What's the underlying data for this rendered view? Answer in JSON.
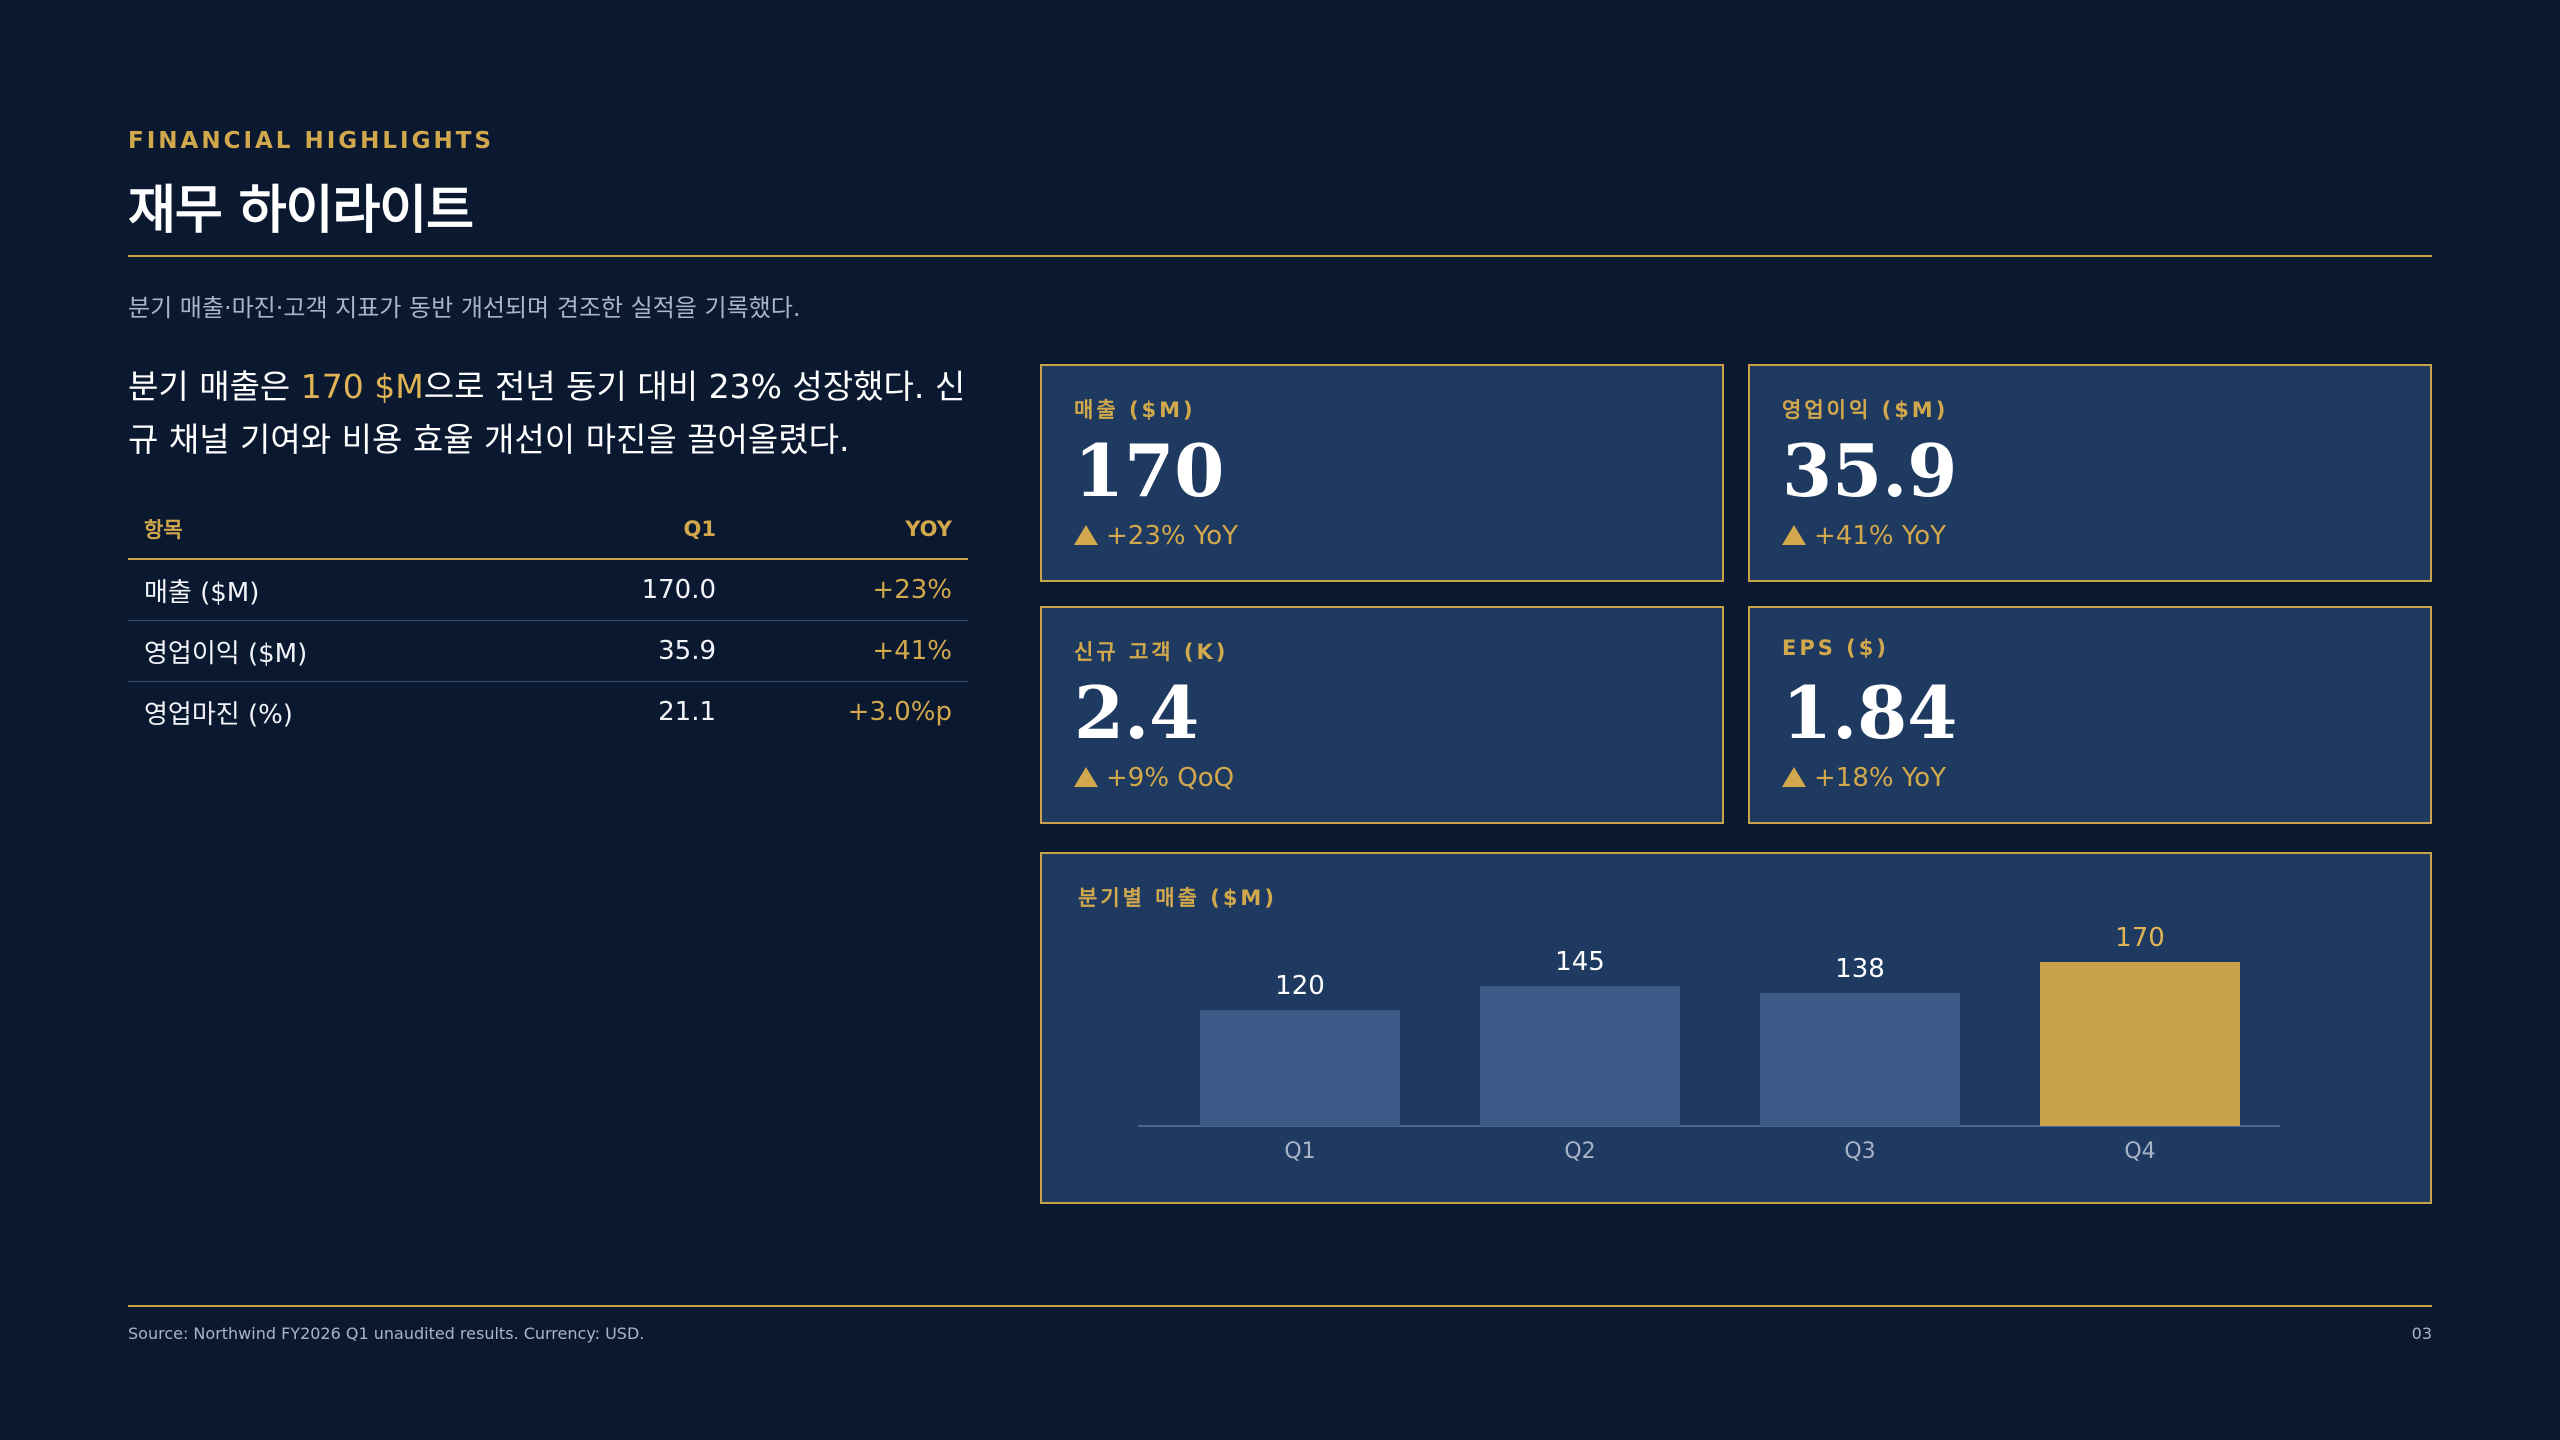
{
  "header": {
    "eyebrow": "FINANCIAL HIGHLIGHTS",
    "title": "재무 하이라이트",
    "subtitle": "분기 매출·마진·고객 지표가 동반 개선되며 견조한 실적을 기록했다."
  },
  "lead": {
    "before": "분기 매출은 ",
    "highlight": "170 $M",
    "after": "으로 전년 동기 대비 23% 성장했다. 신규 채널 기여와 비용 효율 개선이 마진을 끌어올렸다."
  },
  "table": {
    "headers": [
      "항목",
      "Q1",
      "YOY"
    ],
    "rows": [
      [
        "매출 ($M)",
        "170.0",
        "+23%"
      ],
      [
        "영업이익 ($M)",
        "35.9",
        "+41%"
      ],
      [
        "영업마진 (%)",
        "21.1",
        "+3.0%p"
      ]
    ]
  },
  "kpis": [
    {
      "label": "매출 ($M)",
      "value": "170",
      "change": "+23% YoY"
    },
    {
      "label": "영업이익 ($M)",
      "value": "35.9",
      "change": "+41% YoY"
    },
    {
      "label": "신규 고객 (K)",
      "value": "2.4",
      "change": "+9% QoQ"
    },
    {
      "label": "EPS ($)",
      "value": "1.84",
      "change": "+18% YoY"
    }
  ],
  "chart_data": {
    "type": "bar",
    "title": "분기별 매출 ($M)",
    "categories": [
      "Q1",
      "Q2",
      "Q3",
      "Q4"
    ],
    "values": [
      120,
      145,
      138,
      170
    ],
    "ylim": [
      0,
      170
    ],
    "grid": false,
    "colors": {
      "default": "#3b5a88",
      "highlight": "#c9a34a",
      "highlight_label": "#e0b455"
    },
    "highlight_index": 3
  },
  "footer": {
    "source": "Source: Northwind FY2026 Q1 unaudited results. Currency: USD.",
    "page": "03"
  }
}
